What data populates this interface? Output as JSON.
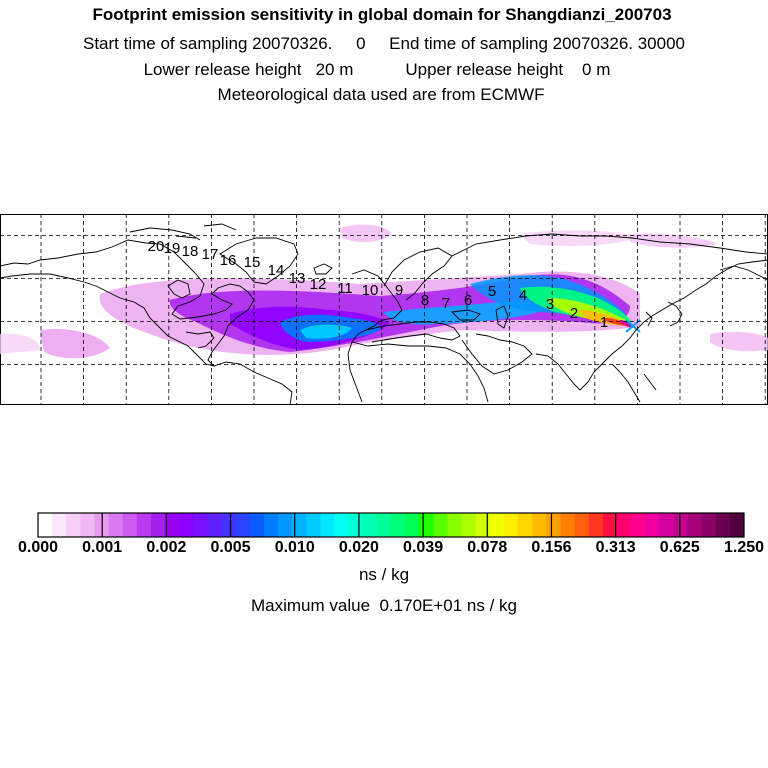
{
  "header": {
    "title": "Footprint emission sensitivity in global domain for Shangdianzi_200703",
    "line2": "Start time of sampling 20070326.     0     End time of sampling 20070326. 30000",
    "line3": "Lower release height   20 m           Upper release height    0 m",
    "line4": "Meteorological data used are from ECMWF"
  },
  "chart_data": {
    "type": "heatmap",
    "title": "Footprint emission sensitivity in global domain for Shangdianzi_200703",
    "colorbar": {
      "units": "ns / kg",
      "tick_labels": [
        "0.000",
        "0.001",
        "0.002",
        "0.005",
        "0.010",
        "0.020",
        "0.039",
        "0.078",
        "0.156",
        "0.313",
        "0.625",
        "1.250"
      ],
      "colors": [
        "#ffffff",
        "#fbe6fb",
        "#f6d0f6",
        "#f0b8f2",
        "#e89bee",
        "#d97aee",
        "#cc5cf0",
        "#bb3cf0",
        "#a71ff0",
        "#9a00f2",
        "#8e00ff",
        "#7a10ff",
        "#6020ff",
        "#4433ff",
        "#2a44ff",
        "#0a5cff",
        "#007cff",
        "#0097ff",
        "#00b0ff",
        "#00cbff",
        "#00e8ff",
        "#00ffee",
        "#00ffd2",
        "#00ffb4",
        "#00ff96",
        "#00ff78",
        "#00ff50",
        "#20ff00",
        "#58ff00",
        "#88ff00",
        "#b0ff00",
        "#d4ff00",
        "#f0ff00",
        "#ffee00",
        "#ffd400",
        "#ffba00",
        "#ffa000",
        "#ff8000",
        "#ff6010",
        "#ff3820",
        "#ff1040",
        "#ff0070",
        "#ff0090",
        "#f000a0",
        "#d800a0",
        "#c0008e",
        "#a6007a",
        "#8a0066",
        "#6c0050",
        "#50003c"
      ]
    },
    "max_value": "0.170E+01",
    "receptor": "Shangdianzi",
    "trajectory_labels": [
      "1",
      "2",
      "3",
      "4",
      "5",
      "6",
      "7",
      "8",
      "9",
      "10",
      "11",
      "12",
      "13",
      "14",
      "15",
      "16",
      "17",
      "18",
      "19",
      "20"
    ],
    "grid": true
  },
  "footer": {
    "units_label": "ns / kg",
    "max_line": "Maximum value  0.170E+01 ns / kg"
  }
}
